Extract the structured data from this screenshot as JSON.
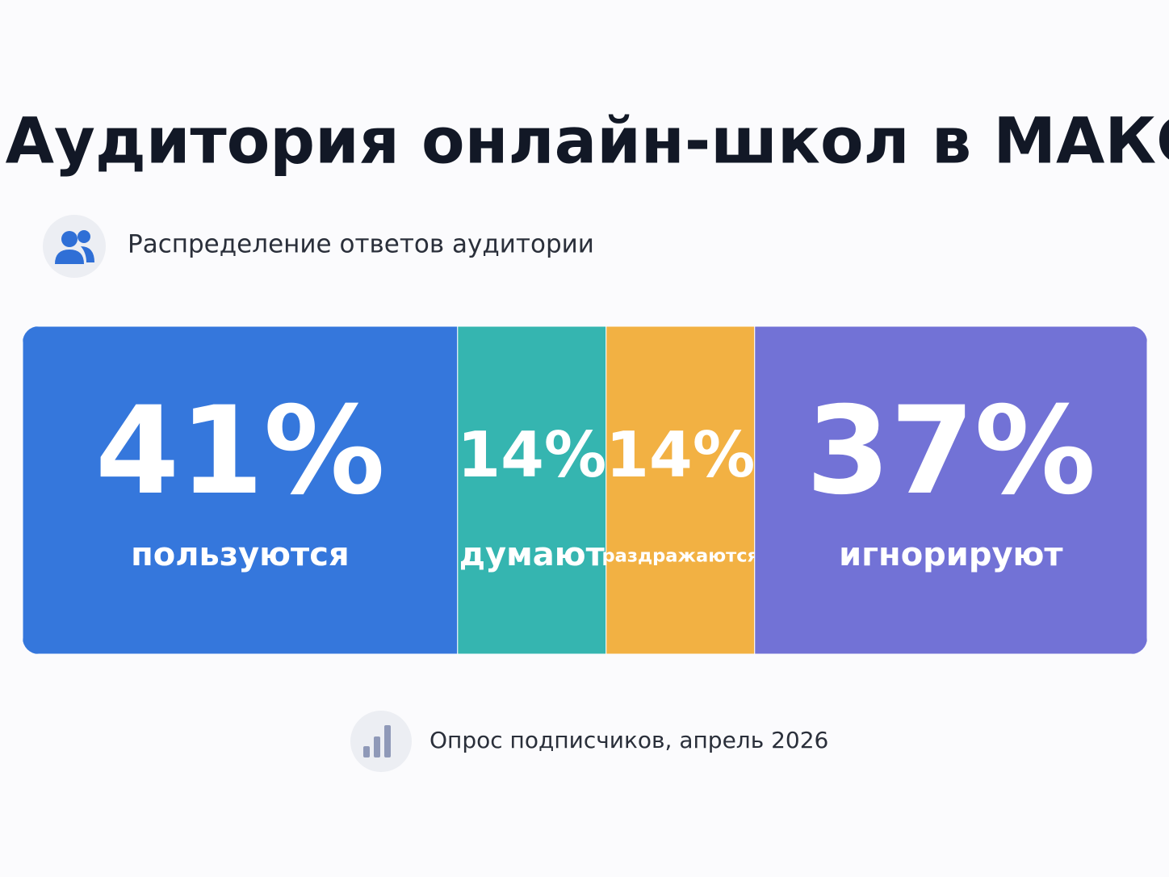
{
  "chart_data": {
    "type": "stacked-bar",
    "title": "Аудитория онлайн-школ в МАКС",
    "subtitle": "Распределение ответов аудитории",
    "source": "Опрос подписчиков, апрель 2026",
    "categories": [
      "пользуются",
      "думают",
      "раздражаются",
      "игнорируют"
    ],
    "values": [
      41,
      14,
      14,
      37
    ],
    "value_labels": [
      "41%",
      "14%",
      "14%",
      "37%"
    ],
    "colors": [
      "#3577dc",
      "#35b5b0",
      "#f2b143",
      "#7272d6"
    ]
  }
}
